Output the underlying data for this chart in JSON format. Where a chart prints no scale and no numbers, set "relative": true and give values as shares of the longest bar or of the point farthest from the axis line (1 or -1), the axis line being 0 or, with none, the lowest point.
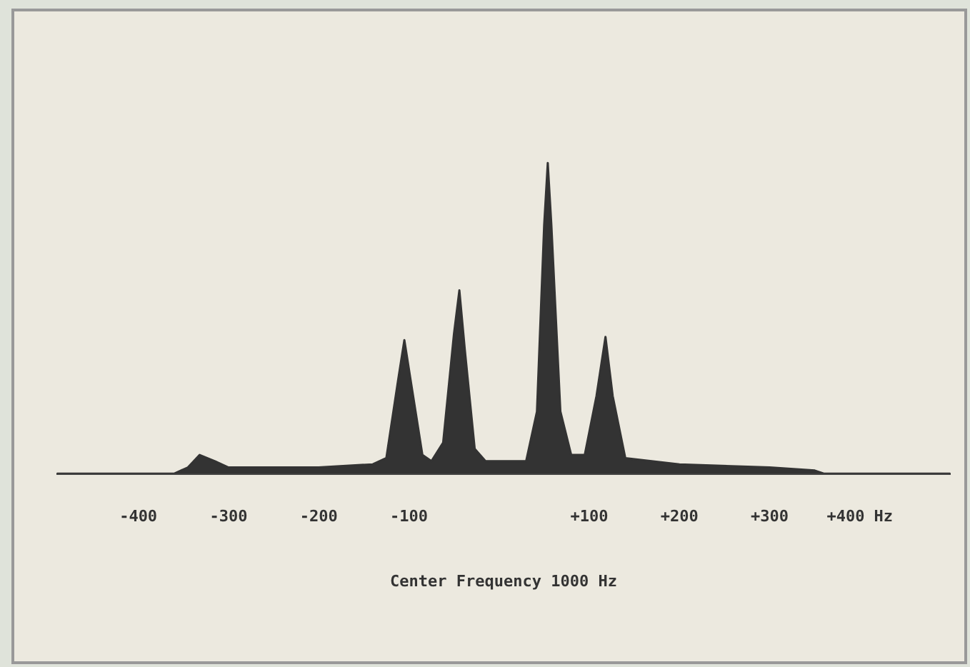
{
  "chart_data": {
    "type": "area",
    "relative": true,
    "xlabel": "Center Frequency 1000 Hz",
    "color": "#333333",
    "x": [
      -490,
      -360,
      -345,
      -332,
      -315,
      -300,
      -200,
      -140,
      -125,
      -112,
      -105,
      -98,
      -85,
      -75,
      -62,
      -50,
      -44,
      -38,
      -27,
      -15,
      30,
      42,
      50,
      54,
      58,
      68,
      80,
      95,
      108,
      118,
      126,
      140,
      200,
      300,
      350,
      360,
      500
    ],
    "values": [
      0,
      0,
      0.02,
      0.06,
      0.04,
      0.02,
      0.02,
      0.03,
      0.05,
      0.3,
      0.43,
      0.3,
      0.06,
      0.04,
      0.1,
      0.45,
      0.59,
      0.4,
      0.08,
      0.04,
      0.04,
      0.2,
      0.8,
      1,
      0.8,
      0.2,
      0.06,
      0.06,
      0.25,
      0.44,
      0.25,
      0.05,
      0.03,
      0.02,
      0.01,
      0,
      0
    ],
    "xlim": [
      -490,
      500
    ],
    "xticks": [
      -400,
      -300,
      -200,
      -100,
      {
        "value": 100,
        "label": "+100"
      },
      {
        "value": 200,
        "label": "+200"
      },
      {
        "value": 300,
        "label": "+300"
      },
      {
        "value": 400,
        "label": "+400 Hz"
      }
    ],
    "grid": false,
    "legend": false,
    "marker": "none"
  }
}
